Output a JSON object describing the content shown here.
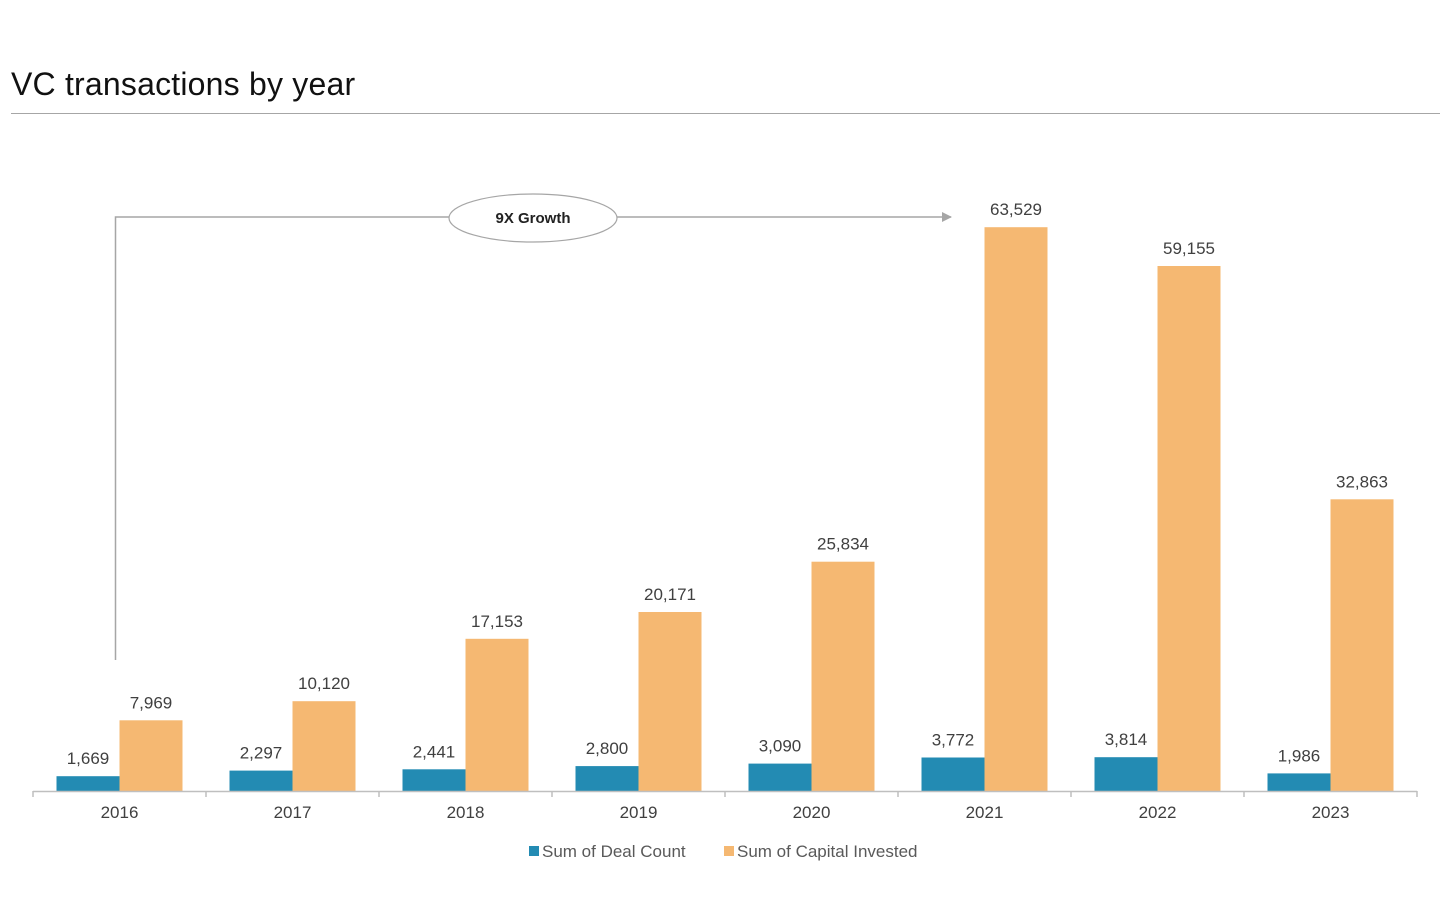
{
  "title": "VC transactions by year",
  "annotation": {
    "label": "9X Growth",
    "from_category": "2016",
    "to_category": "2021"
  },
  "chart_data": {
    "type": "bar",
    "title": "VC transactions by year",
    "xlabel": "",
    "ylabel": "",
    "categories": [
      "2016",
      "2017",
      "2018",
      "2019",
      "2020",
      "2021",
      "2022",
      "2023"
    ],
    "series": [
      {
        "name": "Sum of Deal Count",
        "color": "#238BB3",
        "values": [
          1669,
          2297,
          2441,
          2800,
          3090,
          3772,
          3814,
          1986
        ],
        "labels": [
          "1,669",
          "2,297",
          "2,441",
          "2,800",
          "3,090",
          "3,772",
          "3,814",
          "1,986"
        ]
      },
      {
        "name": "Sum of Capital Invested",
        "color": "#F5B872",
        "values": [
          7969,
          10120,
          17153,
          20171,
          25834,
          63529,
          59155,
          32863
        ],
        "labels": [
          "7,969",
          "10,120",
          "17,153",
          "20,171",
          "25,834",
          "63,529",
          "59,155",
          "32,863"
        ]
      }
    ],
    "ylim": [
      0,
      70000
    ],
    "y_axis_visible": false,
    "grid": false,
    "legend_position": "bottom"
  }
}
